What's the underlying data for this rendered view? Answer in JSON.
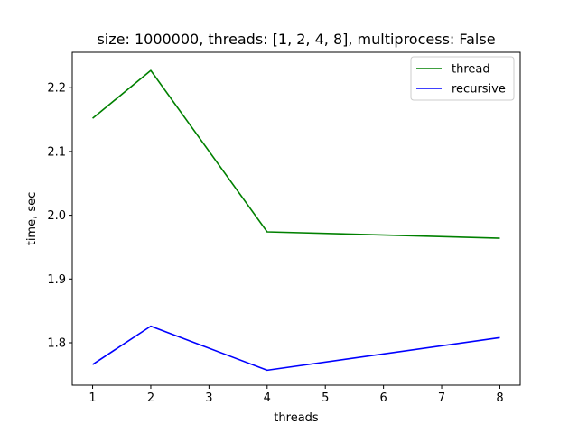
{
  "chart_data": {
    "type": "line",
    "title": "size: 1000000, threads: [1, 2, 4, 8], multiprocess: False",
    "xlabel": "threads",
    "ylabel": "time, sec",
    "xlim": [
      0.65,
      8.35
    ],
    "ylim": [
      1.7335,
      2.2555
    ],
    "x_ticks": [
      1,
      2,
      3,
      4,
      5,
      6,
      7,
      8
    ],
    "y_ticks": [
      1.8,
      1.9,
      2.0,
      2.1,
      2.2
    ],
    "y_tick_labels": [
      "1.8",
      "1.9",
      "2.0",
      "2.1",
      "2.2"
    ],
    "grid": false,
    "legend_position": "top-right",
    "x": [
      1,
      2,
      4,
      8
    ],
    "series": [
      {
        "name": "thread",
        "color": "#008000",
        "values": [
          2.152,
          2.227,
          1.974,
          1.964
        ]
      },
      {
        "name": "recursive",
        "color": "#0000ff",
        "values": [
          1.766,
          1.826,
          1.757,
          1.808
        ]
      }
    ]
  }
}
